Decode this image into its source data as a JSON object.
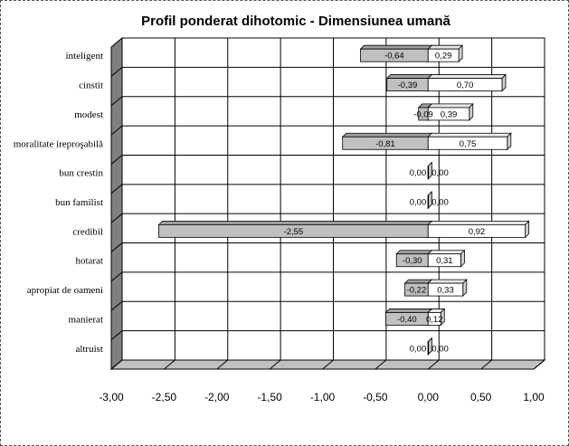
{
  "chart_data": {
    "type": "bar",
    "orientation": "horizontal",
    "style": "3d",
    "title": "Profil ponderat dihotomic - Dimensiunea umană",
    "categories": [
      "inteligent",
      "cinstit",
      "modest",
      "moralitate ireproşabilă",
      "bun crestin",
      "bun familist",
      "credibil",
      "hotarat",
      "apropiat de oameni",
      "manierat",
      "altruist"
    ],
    "series": [
      {
        "values": [
          -0.64,
          -0.39,
          -0.09,
          -0.81,
          0.0,
          0.0,
          -2.55,
          -0.3,
          -0.22,
          -0.4,
          0.0
        ],
        "labels": [
          "-0,64",
          "-0,39",
          "-0,09",
          "-0,81",
          "0,00",
          "0,00",
          "-2,55",
          "-0,30",
          "-0,22",
          "-0,40",
          "0,00"
        ],
        "color": "#c0c0c0"
      },
      {
        "values": [
          0.29,
          0.7,
          0.39,
          0.75,
          0.0,
          0.0,
          0.92,
          0.31,
          0.33,
          0.12,
          0.0
        ],
        "labels": [
          "0,29",
          "0,70",
          "0,39",
          "0,75",
          "0,00",
          "0,00",
          "0,92",
          "0,31",
          "0,33",
          "0,12",
          "0,00"
        ],
        "color": "#ffffff"
      }
    ],
    "xlim": [
      -3.0,
      1.0
    ],
    "xticks": [
      -3.0,
      -2.5,
      -2.0,
      -1.5,
      -1.0,
      -0.5,
      0.0,
      0.5,
      1.0
    ],
    "xtick_labels": [
      "-3,00",
      "-2,50",
      "-2,00",
      "-1,50",
      "-1,00",
      "-0,50",
      "0,00",
      "0,50",
      "1,00"
    ],
    "grid": true,
    "legend": "none"
  }
}
